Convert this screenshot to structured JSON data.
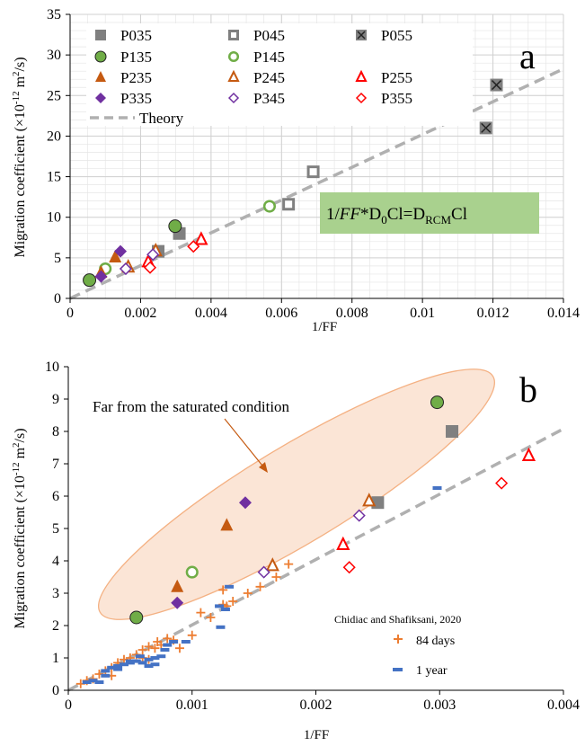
{
  "colors": {
    "gray": "#808080",
    "green": "#70ad47",
    "orange": "#c55a11",
    "red": "#ff0000",
    "purple": "#7030a0",
    "theory": "#b0b0b0",
    "boxFill": "#a9d18e",
    "ellipseFill": "#fbe5d6",
    "ellipseStroke": "#f4b183",
    "plus": "#ed7d31",
    "blue": "#4472c4"
  },
  "chart_data": [
    {
      "type": "scatter",
      "panel_label": "a",
      "xlabel": "1/FF",
      "ylabel_main": "Migration coefficient (×10",
      "ylabel_exp": "-12",
      "ylabel_unit": " m",
      "ylabel_unit_exp": "2",
      "ylabel_end": "/s)",
      "xlim": [
        0,
        0.014
      ],
      "ylim": [
        0,
        35
      ],
      "x_ticks": [
        0,
        0.002,
        0.004,
        0.006,
        0.008,
        0.01,
        0.012,
        0.014
      ],
      "x_tick_labels": [
        "0",
        "0.002",
        "0.004",
        "0.006",
        "0.008",
        "0.01",
        "0.012",
        "0.014"
      ],
      "y_ticks": [
        0,
        5,
        10,
        15,
        20,
        25,
        30,
        35
      ],
      "y_tick_labels": [
        "0",
        "5",
        "10",
        "15",
        "20",
        "25",
        "30",
        "35"
      ],
      "grid": true,
      "equation": {
        "pre": "1/",
        "ff": "FF",
        "mid": "*D",
        "sub1": "0",
        "cl1": "Cl=D",
        "sub2": "RCM",
        "cl2": "Cl"
      },
      "theory": {
        "name": "Theory",
        "slope": 2020
      },
      "series": [
        {
          "name": "P035",
          "marker": "square-filled",
          "color": "gray",
          "points": [
            [
              0.0031,
              8.0
            ],
            [
              0.0025,
              5.8
            ]
          ]
        },
        {
          "name": "P045",
          "marker": "square-open",
          "color": "gray",
          "points": [
            [
              0.0062,
              11.6
            ],
            [
              0.0069,
              15.6
            ]
          ]
        },
        {
          "name": "P055",
          "marker": "square-x",
          "color": "gray",
          "points": [
            [
              0.0118,
              21.0
            ],
            [
              0.0121,
              26.3
            ]
          ]
        },
        {
          "name": "P135",
          "marker": "circle-filled",
          "color": "green",
          "points": [
            [
              0.00055,
              2.25
            ],
            [
              0.00298,
              8.9
            ]
          ]
        },
        {
          "name": "P145",
          "marker": "circle-open",
          "color": "green",
          "points": [
            [
              0.001,
              3.65
            ],
            [
              0.00566,
              11.35
            ]
          ]
        },
        {
          "name": "P235",
          "marker": "triangle-filled",
          "color": "orange",
          "points": [
            [
              0.00088,
              3.2
            ],
            [
              0.00128,
              5.1
            ]
          ]
        },
        {
          "name": "P245",
          "marker": "triangle-open",
          "color": "orange",
          "points": [
            [
              0.00165,
              3.85
            ],
            [
              0.00243,
              5.85
            ]
          ]
        },
        {
          "name": "P255",
          "marker": "triangle-open",
          "color": "red",
          "points": [
            [
              0.00222,
              4.5
            ],
            [
              0.00372,
              7.25
            ]
          ]
        },
        {
          "name": "P335",
          "marker": "diamond-filled",
          "color": "purple",
          "points": [
            [
              0.00088,
              2.7
            ],
            [
              0.00143,
              5.8
            ]
          ]
        },
        {
          "name": "P345",
          "marker": "diamond-open",
          "color": "purple",
          "points": [
            [
              0.00158,
              3.65
            ],
            [
              0.00235,
              5.4
            ]
          ]
        },
        {
          "name": "P355",
          "marker": "diamond-open",
          "color": "red",
          "points": [
            [
              0.00227,
              3.8
            ],
            [
              0.0035,
              6.4
            ]
          ]
        }
      ]
    },
    {
      "type": "scatter",
      "panel_label": "b",
      "xlabel": "1/FF",
      "ylabel_main": "Migration coefficient (×10",
      "ylabel_exp": "-12",
      "ylabel_unit": " m",
      "ylabel_unit_exp": "2",
      "ylabel_end": "/s)",
      "xlim": [
        0,
        0.004
      ],
      "ylim": [
        0,
        10
      ],
      "x_ticks": [
        0,
        0.001,
        0.002,
        0.003,
        0.004
      ],
      "x_tick_labels": [
        "0",
        "0.001",
        "0.002",
        "0.003",
        "0.004"
      ],
      "y_ticks": [
        0,
        1,
        2,
        3,
        4,
        5,
        6,
        7,
        8,
        9,
        10
      ],
      "y_tick_labels": [
        "0",
        "1",
        "2",
        "3",
        "4",
        "5",
        "6",
        "7",
        "8",
        "9",
        "10"
      ],
      "grid": false,
      "annotation": "Far from the saturated condition",
      "reference_text": "Chidiac and Shafiksani, 2020",
      "ref_series": [
        {
          "name": "84 days",
          "marker": "plus",
          "color": "plus",
          "points": [
            [
              0.0001,
              0.2
            ],
            [
              0.00015,
              0.3
            ],
            [
              0.0002,
              0.35
            ],
            [
              0.00025,
              0.5
            ],
            [
              0.0003,
              0.6
            ],
            [
              0.00035,
              0.7
            ],
            [
              0.0004,
              0.85
            ],
            [
              0.00045,
              0.95
            ],
            [
              0.0005,
              1.0
            ],
            [
              0.00055,
              1.1
            ],
            [
              0.0006,
              1.0
            ],
            [
              0.0006,
              1.25
            ],
            [
              0.00065,
              1.35
            ],
            [
              0.0007,
              1.3
            ],
            [
              0.00072,
              1.5
            ],
            [
              0.00075,
              1.4
            ],
            [
              0.0008,
              1.6
            ],
            [
              0.00085,
              1.55
            ],
            [
              0.0009,
              1.3
            ],
            [
              0.001,
              1.7
            ],
            [
              0.00107,
              2.4
            ],
            [
              0.00115,
              2.25
            ],
            [
              0.00125,
              3.1
            ],
            [
              0.00128,
              2.6
            ],
            [
              0.00133,
              2.75
            ],
            [
              0.00145,
              3.0
            ],
            [
              0.00155,
              3.2
            ],
            [
              0.00168,
              3.5
            ],
            [
              0.00178,
              3.9
            ],
            [
              0.00125,
              2.65
            ],
            [
              0.00065,
              0.95
            ],
            [
              0.00035,
              0.45
            ]
          ]
        },
        {
          "name": "1 year",
          "marker": "dash",
          "color": "blue",
          "points": [
            [
              0.00015,
              0.25
            ],
            [
              0.0002,
              0.3
            ],
            [
              0.00025,
              0.25
            ],
            [
              0.0003,
              0.45
            ],
            [
              0.0003,
              0.6
            ],
            [
              0.00035,
              0.7
            ],
            [
              0.0004,
              0.65
            ],
            [
              0.0004,
              0.75
            ],
            [
              0.00045,
              0.8
            ],
            [
              0.0005,
              0.85
            ],
            [
              0.0005,
              0.9
            ],
            [
              0.00055,
              0.9
            ],
            [
              0.0006,
              0.85
            ],
            [
              0.00065,
              0.95
            ],
            [
              0.00065,
              0.75
            ],
            [
              0.0007,
              1.0
            ],
            [
              0.00075,
              1.05
            ],
            [
              0.00078,
              1.25
            ],
            [
              0.0008,
              1.4
            ],
            [
              0.00085,
              1.5
            ],
            [
              0.00123,
              1.95
            ],
            [
              0.00122,
              2.6
            ],
            [
              0.00127,
              2.5
            ],
            [
              0.0013,
              3.2
            ],
            [
              0.00298,
              6.25
            ],
            [
              0.00095,
              1.5
            ],
            [
              0.0007,
              0.8
            ],
            [
              0.00058,
              1.05
            ]
          ]
        }
      ],
      "series_ref": "same as panel a (excluding P045, P055)"
    }
  ]
}
